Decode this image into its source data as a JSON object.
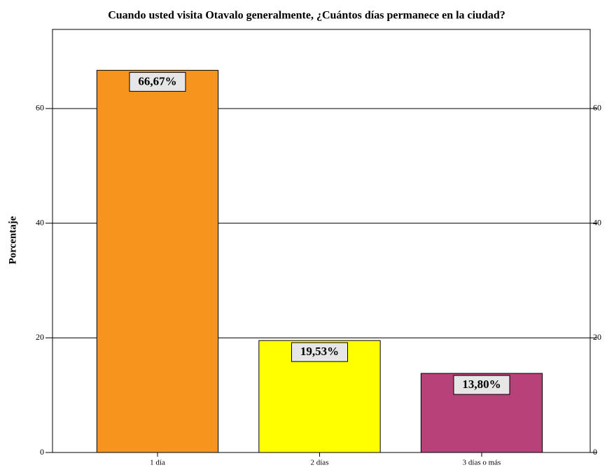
{
  "chart_data": {
    "type": "bar",
    "title": "Cuando usted visita Otavalo generalmente, ¿Cuántos días permanece en la ciudad?",
    "y_label": "Porcentaje",
    "categories": [
      "1 día",
      "2 días",
      "3 días o más"
    ],
    "values": [
      66.67,
      19.53,
      13.8
    ],
    "value_labels": [
      "66,67%",
      "19,53%",
      "13,80%"
    ],
    "colors": [
      "#f7941d",
      "#ffff00",
      "#b8417a"
    ],
    "ylim": [
      0,
      73.8
    ],
    "yticks": [
      0,
      20,
      40,
      60
    ],
    "grid": true
  }
}
